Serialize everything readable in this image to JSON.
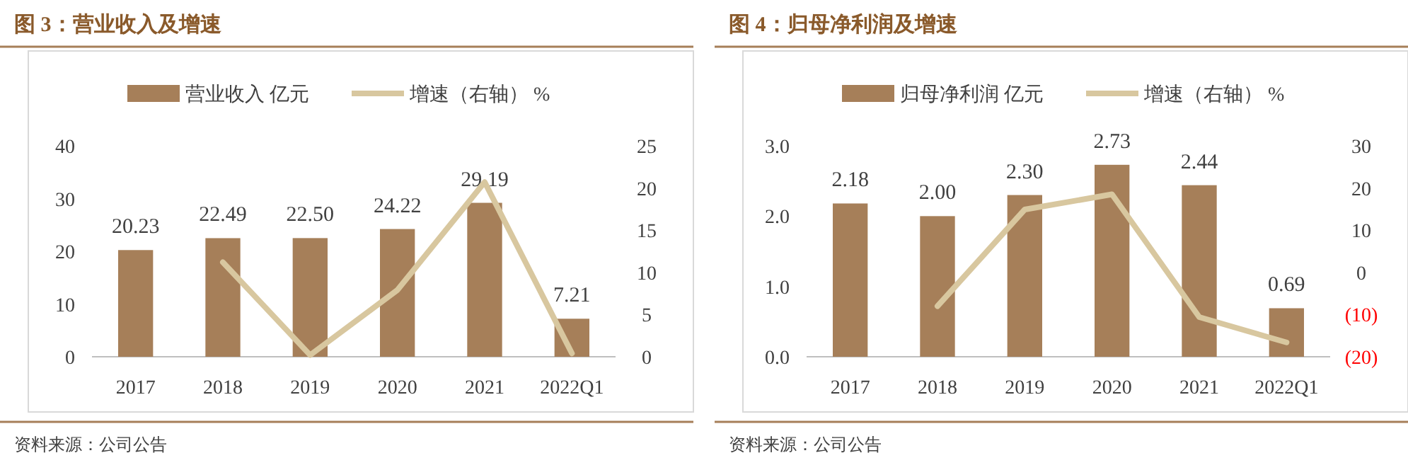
{
  "chart_data": [
    {
      "type": "bar",
      "title": "图 3：营业收入及增速",
      "categories": [
        "2017",
        "2018",
        "2019",
        "2020",
        "2021",
        "2022Q1"
      ],
      "series": [
        {
          "name": "营业收入 亿元",
          "color": "#a67f59",
          "values": [
            20.23,
            22.49,
            22.5,
            24.22,
            29.19,
            7.21
          ],
          "value_labels": [
            "20.23",
            "22.49",
            "22.50",
            "24.22",
            "29.19",
            "7.21"
          ]
        },
        {
          "name": "增速（右轴） %",
          "type": "line",
          "axis": "y2",
          "color": "#d8c79f",
          "values": [
            null,
            11.2,
            0.2,
            7.9,
            20.7,
            0.4
          ]
        }
      ],
      "ylim": [
        0,
        40
      ],
      "yticks": [
        0,
        10,
        20,
        30,
        40
      ],
      "y2lim": [
        0,
        25
      ],
      "y2ticks": [
        0,
        5,
        10,
        15,
        20,
        25
      ],
      "legend": "top",
      "grid": false,
      "annotations": [
        "资料来源：公司公告"
      ]
    },
    {
      "type": "bar",
      "title": "图 4：归母净利润及增速",
      "categories": [
        "2017",
        "2018",
        "2019",
        "2020",
        "2021",
        "2022Q1"
      ],
      "series": [
        {
          "name": "归母净利润 亿元",
          "color": "#a67f59",
          "values": [
            2.18,
            2.0,
            2.3,
            2.73,
            2.44,
            0.69
          ],
          "value_labels": [
            "2.18",
            "2.00",
            "2.30",
            "2.73",
            "2.44",
            "0.69"
          ]
        },
        {
          "name": "增速（右轴） %",
          "type": "line",
          "axis": "y2",
          "color": "#d8c79f",
          "values": [
            null,
            -8.0,
            14.9,
            18.5,
            -10.6,
            -16.6
          ]
        }
      ],
      "ylim": [
        0,
        3
      ],
      "yticks": [
        {
          "value": 0,
          "label": "0.0"
        },
        {
          "value": 1,
          "label": "1.0"
        },
        {
          "value": 2,
          "label": "2.0"
        },
        {
          "value": 3,
          "label": "3.0"
        }
      ],
      "y2lim": [
        -20,
        30
      ],
      "y2ticks": [
        {
          "value": -20,
          "label": "(20)"
        },
        {
          "value": -10,
          "label": "(10)"
        },
        0,
        10,
        20,
        30
      ],
      "legend": "top",
      "grid": false,
      "annotations": [
        "资料来源：公司公告"
      ]
    }
  ]
}
